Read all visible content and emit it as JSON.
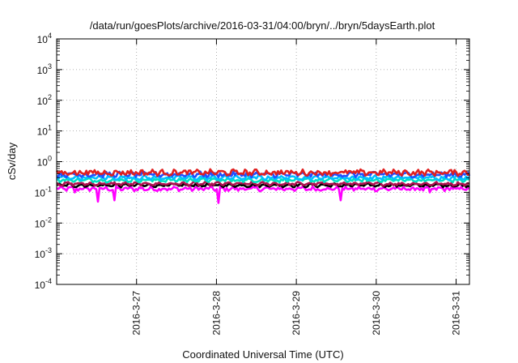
{
  "chart_data": {
    "type": "line",
    "title": "/data/run/goesPlots/archive/2016-03-31/04:00/bryn/../bryn/5daysEarth.plot",
    "xlabel": "Coordinated Universal Time (UTC)",
    "ylabel": "cSv/day",
    "y_scale": "log",
    "ylim": [
      0.0001,
      10000
    ],
    "y_ticks": [
      {
        "value": 0.0001,
        "base": "10",
        "exp": "-4"
      },
      {
        "value": 0.001,
        "base": "10",
        "exp": "-3"
      },
      {
        "value": 0.01,
        "base": "10",
        "exp": "-2"
      },
      {
        "value": 0.1,
        "base": "10",
        "exp": "-1"
      },
      {
        "value": 1,
        "base": "10",
        "exp": "0"
      },
      {
        "value": 10,
        "base": "10",
        "exp": "1"
      },
      {
        "value": 100,
        "base": "10",
        "exp": "2"
      },
      {
        "value": 1000,
        "base": "10",
        "exp": "3"
      },
      {
        "value": 10000,
        "base": "10",
        "exp": "4"
      }
    ],
    "xlim": [
      "2016-03-26T00:00",
      "2016-03-31T04:00"
    ],
    "x_ticks": [
      {
        "value": "2016-03-27T00:00",
        "label": "2016-3-27"
      },
      {
        "value": "2016-03-28T00:00",
        "label": "2016-3-28"
      },
      {
        "value": "2016-03-29T00:00",
        "label": "2016-3-29"
      },
      {
        "value": "2016-03-30T00:00",
        "label": "2016-3-30"
      },
      {
        "value": "2016-03-31T00:00",
        "label": "2016-3-31"
      }
    ],
    "grid": true,
    "series": [
      {
        "color": "#ff00ff",
        "base": 0.13,
        "noise": 0.12,
        "dips": [
          {
            "x": "2016-03-26T12:30",
            "y": 0.05
          },
          {
            "x": "2016-03-26T17:30",
            "y": 0.055
          },
          {
            "x": "2016-03-28T00:30",
            "y": 0.045
          },
          {
            "x": "2016-03-29T13:30",
            "y": 0.055
          },
          {
            "x": "2016-03-26T05:30",
            "y": 0.1
          },
          {
            "x": "2016-03-30T16:00",
            "y": 0.1
          }
        ]
      },
      {
        "color": "#000000",
        "base": 0.17,
        "noise": 0.08,
        "dips": []
      },
      {
        "color": "#b01050",
        "base": 0.19,
        "noise": 0.08,
        "dips": []
      },
      {
        "color": "#00e0c0",
        "base": 0.25,
        "noise": 0.1,
        "dips": []
      },
      {
        "color": "#00c0ff",
        "base": 0.3,
        "noise": 0.1,
        "dips": []
      },
      {
        "color": "#2050ff",
        "base": 0.38,
        "noise": 0.14,
        "dips": []
      },
      {
        "color": "#e02020",
        "base": 0.44,
        "noise": 0.16,
        "dips": []
      }
    ]
  }
}
